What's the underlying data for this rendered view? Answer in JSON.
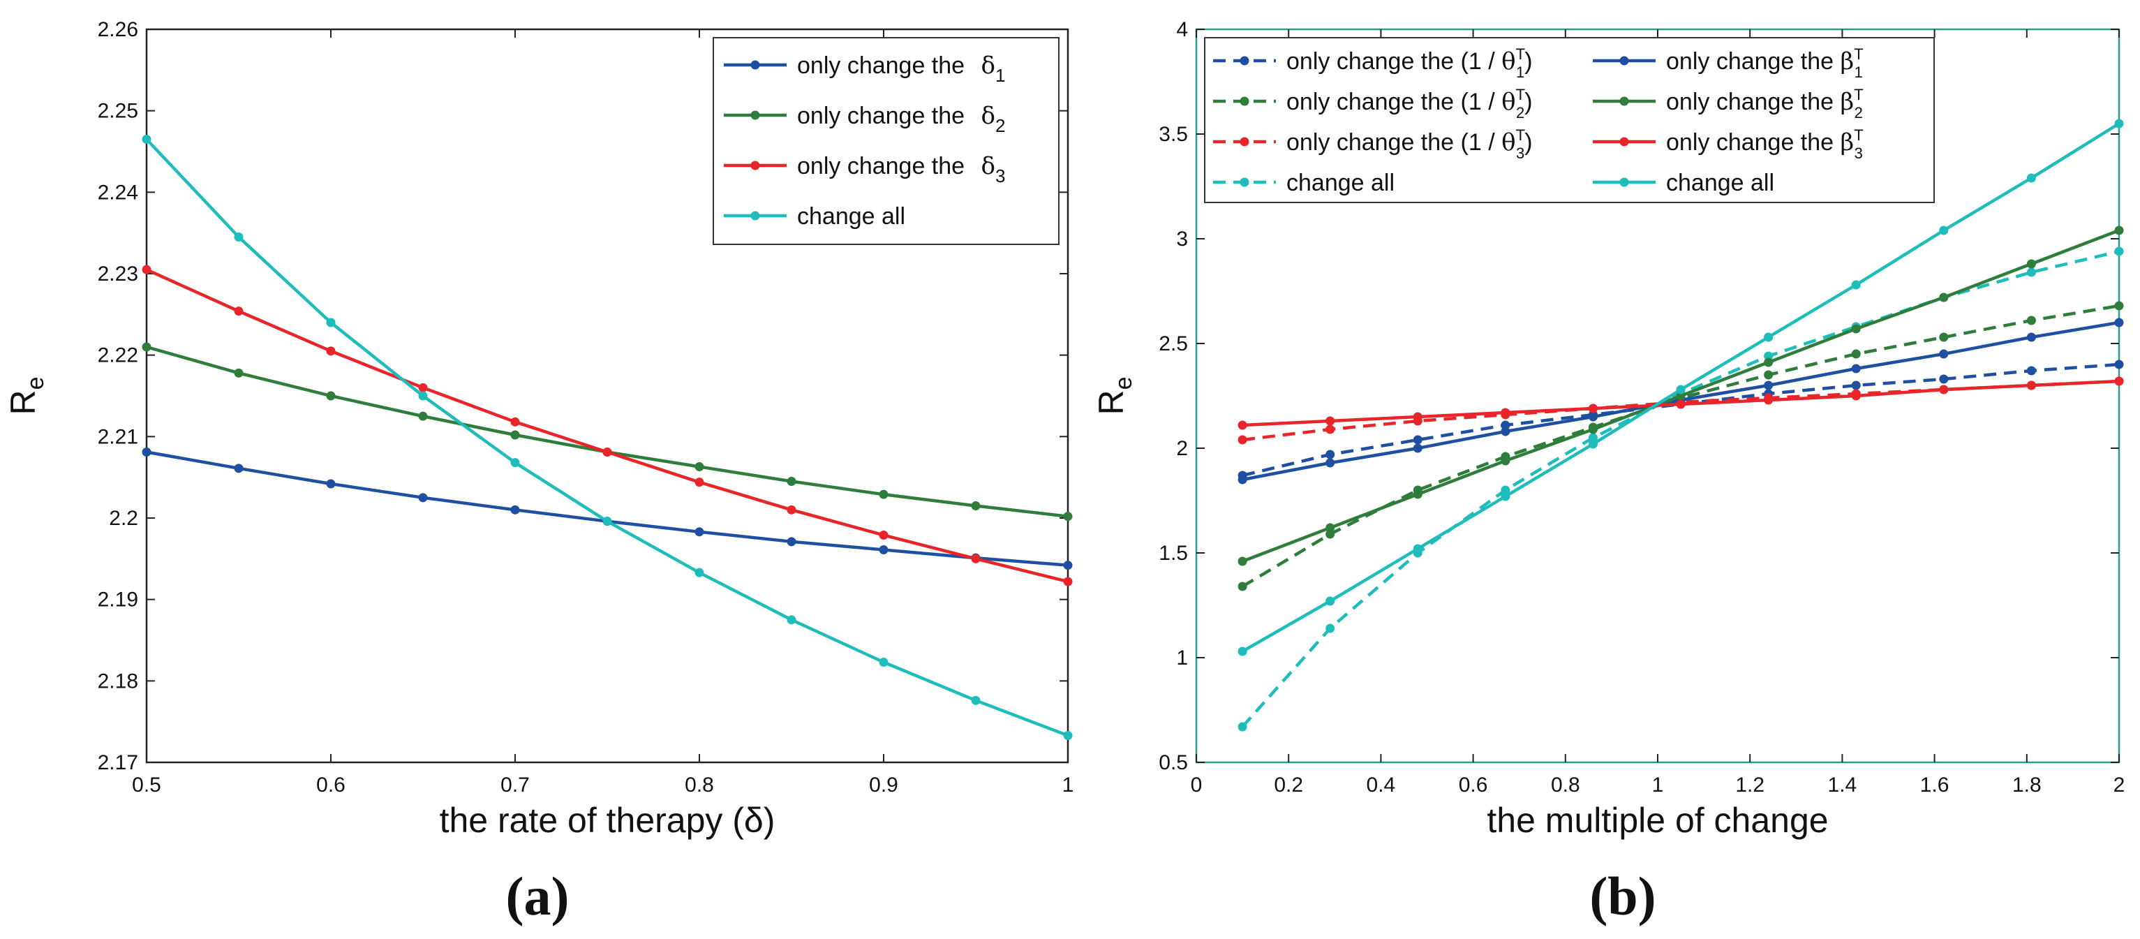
{
  "chart_data": [
    {
      "type": "line",
      "panel_label": "(a)",
      "xlabel": "the rate of therapy (δ)",
      "ylabel": "Re",
      "xlim": [
        0.5,
        1
      ],
      "ylim": [
        2.17,
        2.26
      ],
      "xticks": [
        "0.5",
        "0.6",
        "0.7",
        "0.8",
        "0.9",
        "1"
      ],
      "yticks": [
        "2.17",
        "2.18",
        "2.19",
        "2.2",
        "2.21",
        "2.22",
        "2.23",
        "2.24",
        "2.25",
        "2.26"
      ],
      "grid": false,
      "legend_position": "top-right",
      "x": [
        0.5,
        0.55,
        0.6,
        0.65,
        0.7,
        0.75,
        0.8,
        0.85,
        0.9,
        0.95,
        1.0
      ],
      "series": [
        {
          "name": "only change the δ1",
          "color": "#1f4fa0",
          "dash": false,
          "values": [
            2.2081,
            2.2061,
            2.2042,
            2.2025,
            2.201,
            2.1996,
            2.1983,
            2.1971,
            2.1961,
            2.1951,
            2.1942
          ]
        },
        {
          "name": "only change the δ2",
          "color": "#2e7d3a",
          "dash": false,
          "values": [
            2.221,
            2.2178,
            2.215,
            2.2125,
            2.2102,
            2.2081,
            2.2063,
            2.2045,
            2.2029,
            2.2015,
            2.2002
          ]
        },
        {
          "name": "only change the δ3",
          "color": "#e8262a",
          "dash": false,
          "values": [
            2.2305,
            2.2254,
            2.2205,
            2.216,
            2.2118,
            2.2081,
            2.2044,
            2.201,
            2.1979,
            2.195,
            2.1922
          ]
        },
        {
          "name": "change all",
          "color": "#1fbcbc",
          "dash": false,
          "values": [
            2.2465,
            2.2345,
            2.224,
            2.215,
            2.2068,
            2.1996,
            2.1933,
            2.1875,
            2.1823,
            2.1776,
            2.1733
          ]
        }
      ]
    },
    {
      "type": "line",
      "panel_label": "(b)",
      "xlabel": "the multiple of change",
      "ylabel": "Re",
      "xlim": [
        0,
        2
      ],
      "ylim": [
        0.5,
        4
      ],
      "xticks": [
        "0",
        "0.2",
        "0.4",
        "0.6",
        "0.8",
        "1",
        "1.2",
        "1.4",
        "1.6",
        "1.8",
        "2"
      ],
      "yticks": [
        "0.5",
        "1",
        "1.5",
        "2",
        "2.5",
        "3",
        "3.5",
        "4"
      ],
      "grid": false,
      "legend_position": "top-left",
      "x": [
        0.1,
        0.29,
        0.48,
        0.67,
        0.86,
        1.05,
        1.24,
        1.43,
        1.62,
        1.81,
        2.0
      ],
      "series": [
        {
          "name": "only change the (1 / θ1T)",
          "color": "#1f4fa0",
          "dash": true,
          "values": [
            1.87,
            1.97,
            2.04,
            2.11,
            2.16,
            2.21,
            2.26,
            2.3,
            2.33,
            2.37,
            2.4
          ]
        },
        {
          "name": "only change the (1 / θ2T)",
          "color": "#2e7d3a",
          "dash": true,
          "values": [
            1.34,
            1.59,
            1.8,
            1.96,
            2.1,
            2.24,
            2.35,
            2.45,
            2.53,
            2.61,
            2.68
          ]
        },
        {
          "name": "only change the (1 / θ3T)",
          "color": "#e8262a",
          "dash": true,
          "values": [
            2.04,
            2.09,
            2.13,
            2.16,
            2.19,
            2.22,
            2.24,
            2.26,
            2.28,
            2.3,
            2.32
          ]
        },
        {
          "name": "change all",
          "color": "#1fbcbc",
          "dash": true,
          "values": [
            0.67,
            1.14,
            1.5,
            1.8,
            2.05,
            2.26,
            2.44,
            2.58,
            2.72,
            2.84,
            2.94
          ]
        },
        {
          "name": "only change the β1T",
          "color": "#1f4fa0",
          "dash": false,
          "values": [
            1.85,
            1.93,
            2.0,
            2.08,
            2.15,
            2.23,
            2.3,
            2.38,
            2.45,
            2.53,
            2.6
          ]
        },
        {
          "name": "only change the β2T",
          "color": "#2e7d3a",
          "dash": false,
          "values": [
            1.46,
            1.62,
            1.78,
            1.94,
            2.09,
            2.25,
            2.41,
            2.57,
            2.72,
            2.88,
            3.04
          ]
        },
        {
          "name": "only change the β3T",
          "color": "#e8262a",
          "dash": false,
          "values": [
            2.11,
            2.13,
            2.15,
            2.17,
            2.19,
            2.21,
            2.23,
            2.25,
            2.28,
            2.3,
            2.32
          ]
        },
        {
          "name": "change all",
          "color": "#1fbcbc",
          "dash": false,
          "values": [
            1.03,
            1.27,
            1.52,
            1.77,
            2.02,
            2.28,
            2.53,
            2.78,
            3.04,
            3.29,
            3.55
          ]
        }
      ]
    }
  ],
  "legend_a": [
    {
      "pre": "only change the ",
      "sym": "δ",
      "sub": "1",
      "sup": ""
    },
    {
      "pre": "only change the ",
      "sym": "δ",
      "sub": "2",
      "sup": ""
    },
    {
      "pre": "only change the ",
      "sym": "δ",
      "sub": "3",
      "sup": ""
    },
    {
      "pre": "change all",
      "sym": "",
      "sub": "",
      "sup": ""
    }
  ],
  "legend_b_left": [
    {
      "pre": "only change the (1 / ",
      "sym": "θ",
      "sub": "1",
      "sup": "T",
      "post": ")"
    },
    {
      "pre": "only change the (1 / ",
      "sym": "θ",
      "sub": "2",
      "sup": "T",
      "post": ")"
    },
    {
      "pre": "only change the (1 / ",
      "sym": "θ",
      "sub": "3",
      "sup": "T",
      "post": ")"
    },
    {
      "pre": "change all",
      "sym": "",
      "sub": "",
      "sup": "",
      "post": ""
    }
  ],
  "legend_b_right": [
    {
      "pre": "only change the ",
      "sym": "β",
      "sub": "1",
      "sup": "T",
      "post": ""
    },
    {
      "pre": "only change the ",
      "sym": "β",
      "sub": "2",
      "sup": "T",
      "post": ""
    },
    {
      "pre": "only change the ",
      "sym": "β",
      "sub": "3",
      "sup": "T",
      "post": ""
    },
    {
      "pre": "change all",
      "sym": "",
      "sub": "",
      "sup": "",
      "post": ""
    }
  ],
  "colors": {
    "blue": "#1f4fa0",
    "green": "#2e7d3a",
    "red": "#e8262a",
    "cyan": "#1fbcbc",
    "frame_b": "#2a9d8f"
  }
}
